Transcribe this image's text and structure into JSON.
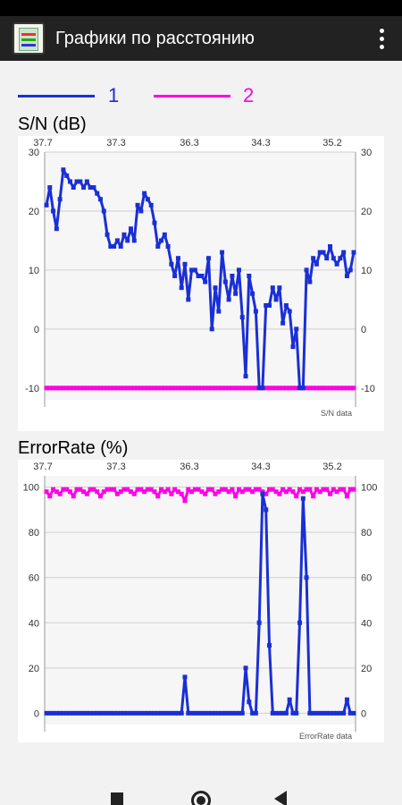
{
  "app": {
    "title": "Графики по расстоянию",
    "icon": "spreadsheet-chart-icon",
    "menu_icon": "more-vert-icon"
  },
  "legend": [
    {
      "label": "1",
      "color": "#1a2fd6"
    },
    {
      "label": "2",
      "color": "#ff00e6"
    }
  ],
  "nav": {
    "recents_icon": "square-icon",
    "home_icon": "circle-icon",
    "back_icon": "triangle-back-icon"
  },
  "chart_data": [
    {
      "type": "line",
      "title": "S/N (dB)",
      "watermark": "S/N data",
      "x_tick_labels": [
        "37.7",
        "37.3",
        "36.3",
        "34.3",
        "35.2"
      ],
      "ylim": [
        -12,
        30
      ],
      "y_ticks": [
        30,
        20,
        10,
        0,
        -10
      ],
      "grid": true,
      "series": [
        {
          "name": "1",
          "color": "#1a2fd6",
          "values": [
            21,
            24,
            20,
            17,
            22,
            27,
            26,
            25,
            24,
            25,
            25,
            24,
            25,
            24,
            24,
            23,
            22,
            20,
            16,
            14,
            14,
            15,
            14,
            16,
            15,
            17,
            15,
            21,
            20,
            23,
            22,
            21,
            18,
            14,
            15,
            16,
            14,
            11,
            9,
            12,
            7,
            11,
            5,
            10,
            10,
            9,
            9,
            8,
            12,
            0,
            7,
            3,
            13,
            8,
            5,
            9,
            6,
            10,
            2,
            -8,
            9,
            6,
            3,
            -10,
            -10,
            4,
            4,
            7,
            5,
            7,
            1,
            4,
            3,
            -3,
            0,
            -10,
            -10,
            10,
            8,
            12,
            11,
            13,
            13,
            12,
            14,
            12,
            11,
            12,
            13,
            9,
            10,
            13
          ]
        },
        {
          "name": "2",
          "color": "#ff00e6",
          "values": [
            -10,
            -10,
            -10,
            -10,
            -10,
            -10,
            -10,
            -10,
            -10,
            -10,
            -10,
            -10,
            -10,
            -10,
            -10,
            -10,
            -10,
            -10,
            -10,
            -10,
            -10,
            -10,
            -10,
            -10,
            -10,
            -10,
            -10,
            -10,
            -10,
            -10,
            -10,
            -10,
            -10,
            -10,
            -10,
            -10,
            -10,
            -10,
            -10,
            -10,
            -10,
            -10,
            -10,
            -10,
            -10,
            -10,
            -10,
            -10,
            -10,
            -10,
            -10,
            -10,
            -10,
            -10,
            -10,
            -10,
            -10,
            -10,
            -10,
            -10,
            -10,
            -10,
            -10,
            -10,
            -10,
            -10,
            -10,
            -10,
            -10,
            -10,
            -10,
            -10,
            -10,
            -10,
            -10,
            -10,
            -10,
            -10,
            -10,
            -10,
            -10,
            -10,
            -10,
            -10,
            -10,
            -10,
            -10,
            -10,
            -10,
            -10,
            -10,
            -10
          ]
        }
      ]
    },
    {
      "type": "line",
      "title": "ErrorRate (%)",
      "watermark": "ErrorRate data",
      "x_tick_labels": [
        "37.7",
        "37.3",
        "36.3",
        "34.3",
        "35.2"
      ],
      "ylim": [
        -5,
        105
      ],
      "y_ticks": [
        100,
        80,
        60,
        40,
        20,
        0
      ],
      "grid": true,
      "series": [
        {
          "name": "1",
          "color": "#1a2fd6",
          "values": [
            0,
            0,
            0,
            0,
            0,
            0,
            0,
            0,
            0,
            0,
            0,
            0,
            0,
            0,
            0,
            0,
            0,
            0,
            0,
            0,
            0,
            0,
            0,
            0,
            0,
            0,
            0,
            0,
            0,
            0,
            0,
            0,
            0,
            0,
            0,
            0,
            0,
            0,
            0,
            0,
            0,
            16,
            0,
            0,
            0,
            0,
            0,
            0,
            0,
            0,
            0,
            0,
            0,
            0,
            0,
            0,
            0,
            0,
            0,
            20,
            5,
            0,
            0,
            40,
            97,
            90,
            30,
            0,
            0,
            0,
            0,
            0,
            6,
            0,
            0,
            40,
            95,
            60,
            0,
            0,
            0,
            0,
            0,
            0,
            0,
            0,
            0,
            0,
            0,
            6,
            0,
            0
          ]
        },
        {
          "name": "2",
          "color": "#ff00e6",
          "values": [
            98,
            96,
            99,
            98,
            97,
            99,
            99,
            98,
            96,
            99,
            99,
            98,
            97,
            99,
            99,
            98,
            96,
            98,
            99,
            99,
            99,
            97,
            98,
            99,
            99,
            98,
            97,
            99,
            99,
            98,
            99,
            99,
            98,
            96,
            99,
            98,
            99,
            97,
            99,
            98,
            97,
            94,
            99,
            98,
            99,
            99,
            98,
            97,
            99,
            99,
            97,
            98,
            99,
            99,
            98,
            99,
            96,
            99,
            98,
            99,
            99,
            98,
            99,
            99,
            98,
            97,
            99,
            99,
            98,
            97,
            99,
            98,
            99,
            98,
            96,
            99,
            98,
            99,
            99,
            96,
            99,
            98,
            99,
            99,
            97,
            99,
            98,
            99,
            99,
            96,
            99,
            99
          ]
        }
      ]
    }
  ]
}
